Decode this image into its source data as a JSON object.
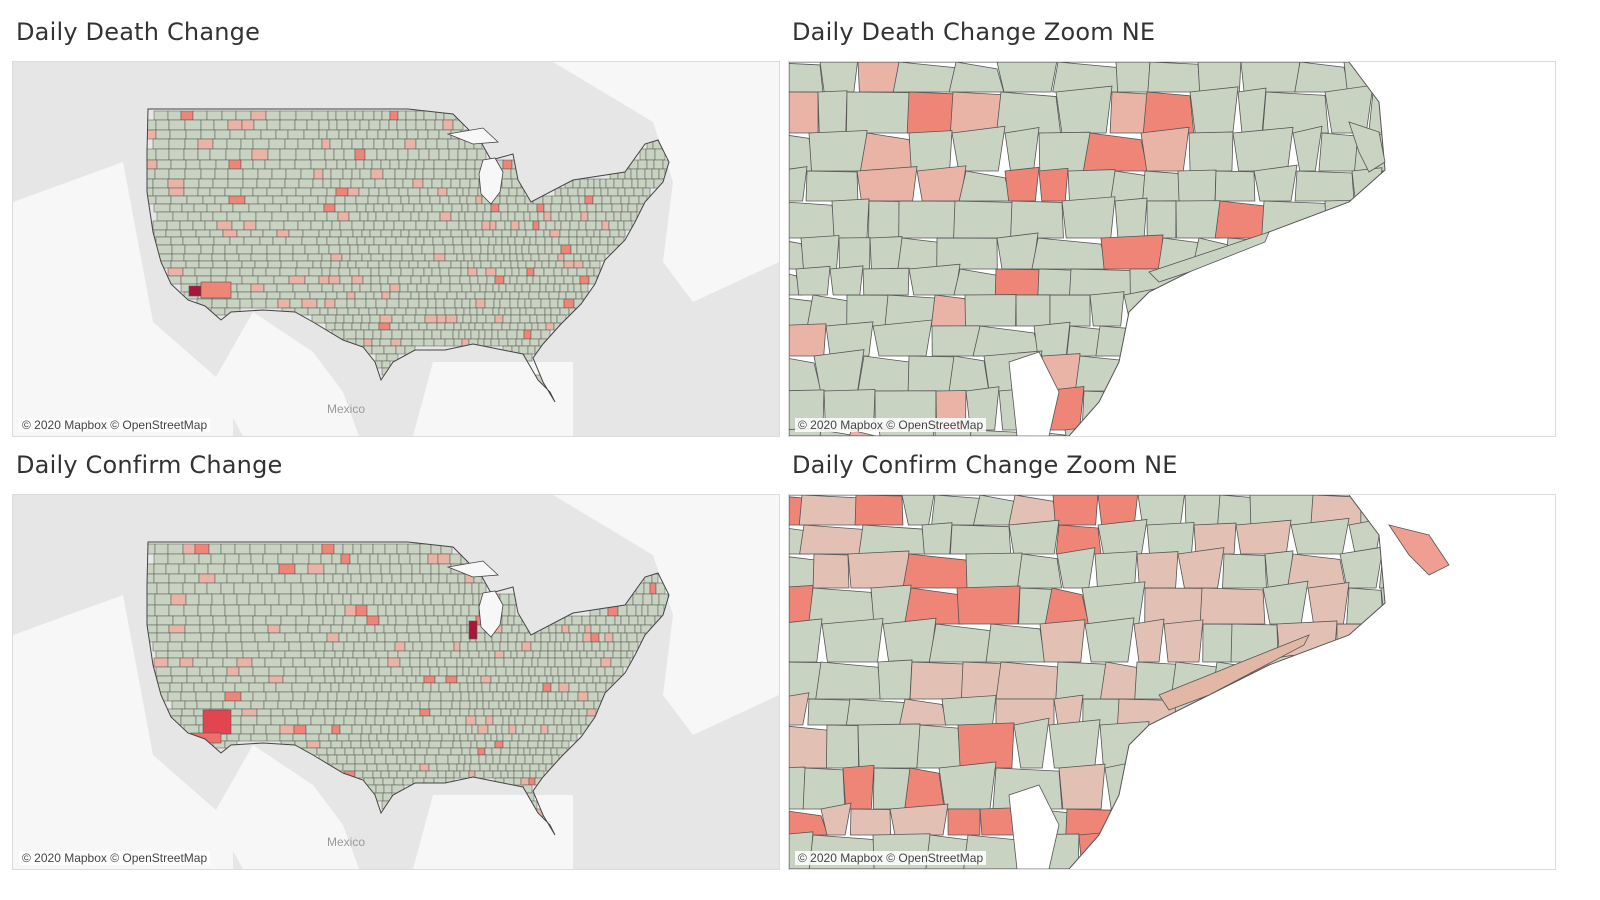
{
  "panels": {
    "death_us": {
      "title": "Daily Death Change",
      "place": "Mexico"
    },
    "death_ne": {
      "title": "Daily Death Change Zoom NE"
    },
    "confirm_us": {
      "title": "Daily Confirm Change",
      "place": "Mexico"
    },
    "confirm_ne": {
      "title": "Daily Confirm Change Zoom NE"
    }
  },
  "attribution": "© 2020 Mapbox © OpenStreetMap",
  "colors": {
    "base": "#c9d3c2",
    "light_red": "#e9b3a6",
    "red": "#ef8577",
    "dark_red": "#a8173b",
    "border": "#555555",
    "land": "#e3e3e3",
    "water": "#ffffff"
  },
  "legend": {
    "type": "diverging",
    "low": "green",
    "high": "red"
  }
}
